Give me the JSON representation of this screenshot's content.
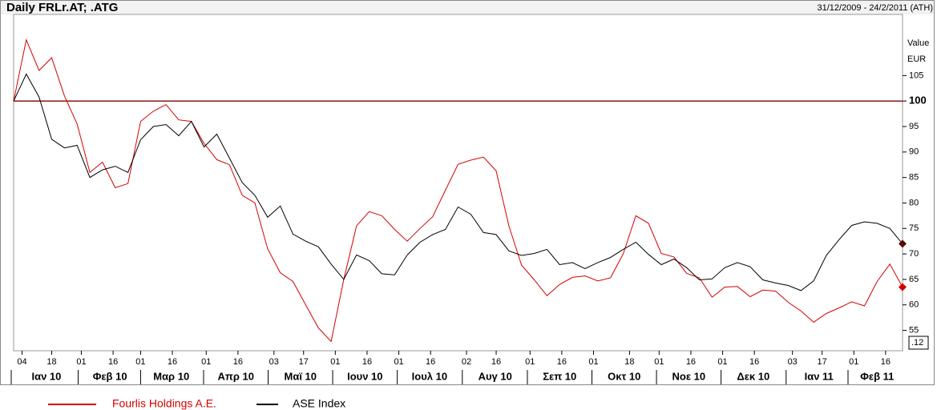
{
  "chart_data": {
    "type": "line",
    "title": "Daily FRLr.AT; .ATG",
    "subtitle": "31/12/2009 - 24/2/2011 (ATH)",
    "y_axis_label": "Value",
    "y_axis_unit": "EUR",
    "corner_label": ".12",
    "x": [
      0,
      6,
      12,
      18,
      24,
      30,
      36,
      42,
      48,
      54,
      60,
      66,
      72,
      78,
      84,
      90,
      96,
      102,
      108,
      114,
      120,
      126,
      132,
      138,
      144,
      150,
      156,
      162,
      168,
      174,
      180,
      186,
      192,
      198,
      204,
      210,
      216,
      222,
      228,
      234,
      240,
      246,
      252,
      258,
      264,
      270,
      276,
      282,
      288,
      294,
      300,
      306,
      312,
      318,
      324,
      330,
      336,
      342,
      348,
      354,
      360,
      366,
      372,
      378,
      384,
      390,
      396,
      402,
      408,
      414,
      420
    ],
    "xlim": [
      0,
      420
    ],
    "xticks": [
      {
        "value": 4,
        "label": "04"
      },
      {
        "value": 18,
        "label": "18"
      },
      {
        "value": 32,
        "label": "01"
      },
      {
        "value": 47,
        "label": "16"
      },
      {
        "value": 60,
        "label": "01"
      },
      {
        "value": 75,
        "label": "16"
      },
      {
        "value": 91,
        "label": "01"
      },
      {
        "value": 106,
        "label": "16"
      },
      {
        "value": 123,
        "label": "03"
      },
      {
        "value": 137,
        "label": "17"
      },
      {
        "value": 152,
        "label": "01"
      },
      {
        "value": 167,
        "label": "16"
      },
      {
        "value": 182,
        "label": "01"
      },
      {
        "value": 197,
        "label": "16"
      },
      {
        "value": 214,
        "label": "02"
      },
      {
        "value": 228,
        "label": "16"
      },
      {
        "value": 244,
        "label": "01"
      },
      {
        "value": 259,
        "label": "16"
      },
      {
        "value": 274,
        "label": "01"
      },
      {
        "value": 291,
        "label": "18"
      },
      {
        "value": 305,
        "label": "01"
      },
      {
        "value": 320,
        "label": "16"
      },
      {
        "value": 335,
        "label": "01"
      },
      {
        "value": 350,
        "label": "16"
      },
      {
        "value": 368,
        "label": "03"
      },
      {
        "value": 382,
        "label": "17"
      },
      {
        "value": 397,
        "label": "01"
      },
      {
        "value": 412,
        "label": "16"
      }
    ],
    "month_labels": [
      {
        "value": 15.5,
        "label": "Ιαν 10"
      },
      {
        "value": 45.5,
        "label": "Φεβ 10"
      },
      {
        "value": 74.5,
        "label": "Μαρ 10"
      },
      {
        "value": 105,
        "label": "Απρ 10"
      },
      {
        "value": 135.5,
        "label": "Μαϊ 10"
      },
      {
        "value": 166,
        "label": "Ιουν 10"
      },
      {
        "value": 196.5,
        "label": "Ιουλ 10"
      },
      {
        "value": 227.5,
        "label": "Αυγ 10"
      },
      {
        "value": 258,
        "label": "Σεπ 10"
      },
      {
        "value": 288.5,
        "label": "Οκτ 10"
      },
      {
        "value": 319,
        "label": "Νοε 10"
      },
      {
        "value": 349.5,
        "label": "Δεκ 10"
      },
      {
        "value": 380.5,
        "label": "Ιαν 11"
      },
      {
        "value": 408,
        "label": "Φεβ 11"
      }
    ],
    "ylim": [
      51,
      117
    ],
    "yticks": [
      55,
      60,
      65,
      70,
      75,
      80,
      85,
      90,
      95,
      100,
      105
    ],
    "reference_line": 100,
    "reference_color": "#800000",
    "series": [
      {
        "name": "Fourlis Holdings A.E.",
        "color": "#d40000",
        "end_marker_color": "#d40000",
        "values": [
          100,
          112,
          106,
          108.5,
          101,
          95.5,
          86,
          88,
          83,
          83.8,
          96,
          98,
          99.3,
          96.3,
          96,
          91.7,
          88.5,
          87.5,
          81.5,
          80,
          71,
          66.3,
          64.6,
          60,
          55.5,
          52.8,
          65,
          75.5,
          78.3,
          77.5,
          74.8,
          72.5,
          75,
          77.3,
          82.5,
          87.6,
          88.4,
          89,
          86.3,
          75.5,
          67.8,
          64.9,
          61.8,
          64,
          65.4,
          65.7,
          64.7,
          65.3,
          70,
          77.5,
          76,
          70.1,
          69.4,
          66.2,
          65.3,
          61.5,
          63.5,
          63.6,
          61.6,
          62.9,
          62.7,
          60.5,
          58.8,
          56.6,
          58.3,
          59.4,
          60.6,
          59.8,
          64.6,
          68,
          63.5
        ]
      },
      {
        "name": "ASE Index",
        "color": "#000000",
        "end_marker_color": "#5a0a0a",
        "values": [
          100,
          105.3,
          100.8,
          92.5,
          90.8,
          91.3,
          85,
          86.5,
          87.2,
          86,
          92.4,
          95,
          95.4,
          93.2,
          96,
          91,
          93.5,
          88.8,
          84,
          81.5,
          77.2,
          79.4,
          73.9,
          72.5,
          71.4,
          68,
          65,
          69.8,
          68.7,
          66.1,
          65.9,
          69.8,
          72.3,
          73.8,
          74.8,
          79.2,
          77.8,
          74.2,
          73.8,
          70.6,
          69.7,
          70.1,
          70.9,
          67.9,
          68.3,
          67.1,
          68.3,
          69.3,
          70.9,
          72.3,
          69.9,
          67.9,
          69,
          67.3,
          64.9,
          65.1,
          67.3,
          68.3,
          67.5,
          64.9,
          64.3,
          63.8,
          62.8,
          64.7,
          69.7,
          72.8,
          75.6,
          76.3,
          76,
          75,
          72
        ]
      }
    ]
  }
}
